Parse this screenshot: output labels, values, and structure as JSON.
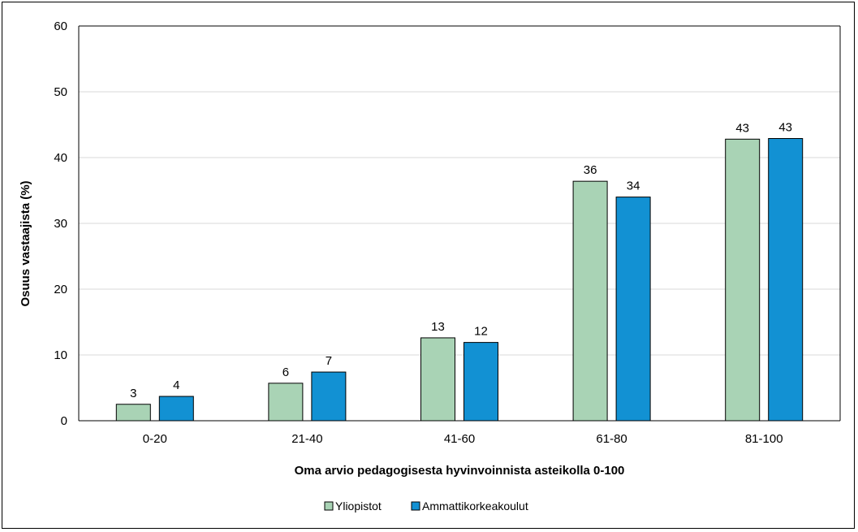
{
  "chart_data": {
    "type": "bar",
    "title": "",
    "xlabel": "Oma arvio pedagogisesta hyvinvoinnista asteikolla 0-100",
    "ylabel": "Osuus vastaajista (%)",
    "ylim": [
      0,
      60
    ],
    "yticks": [
      0,
      10,
      20,
      30,
      40,
      50,
      60
    ],
    "grid": true,
    "legend_position": "bottom",
    "categories": [
      "0-20",
      "21-40",
      "41-60",
      "61-80",
      "81-100"
    ],
    "series": [
      {
        "name": "Yliopistot",
        "color": "#a9d3b5",
        "values": [
          2.5,
          5.7,
          12.6,
          36.4,
          42.8
        ],
        "labels": [
          "3",
          "6",
          "13",
          "36",
          "43"
        ]
      },
      {
        "name": "Ammattikorkeakoulut",
        "color": "#1291d3",
        "values": [
          3.7,
          7.4,
          11.9,
          34.0,
          42.9
        ],
        "labels": [
          "4",
          "7",
          "12",
          "34",
          "43"
        ]
      }
    ]
  }
}
